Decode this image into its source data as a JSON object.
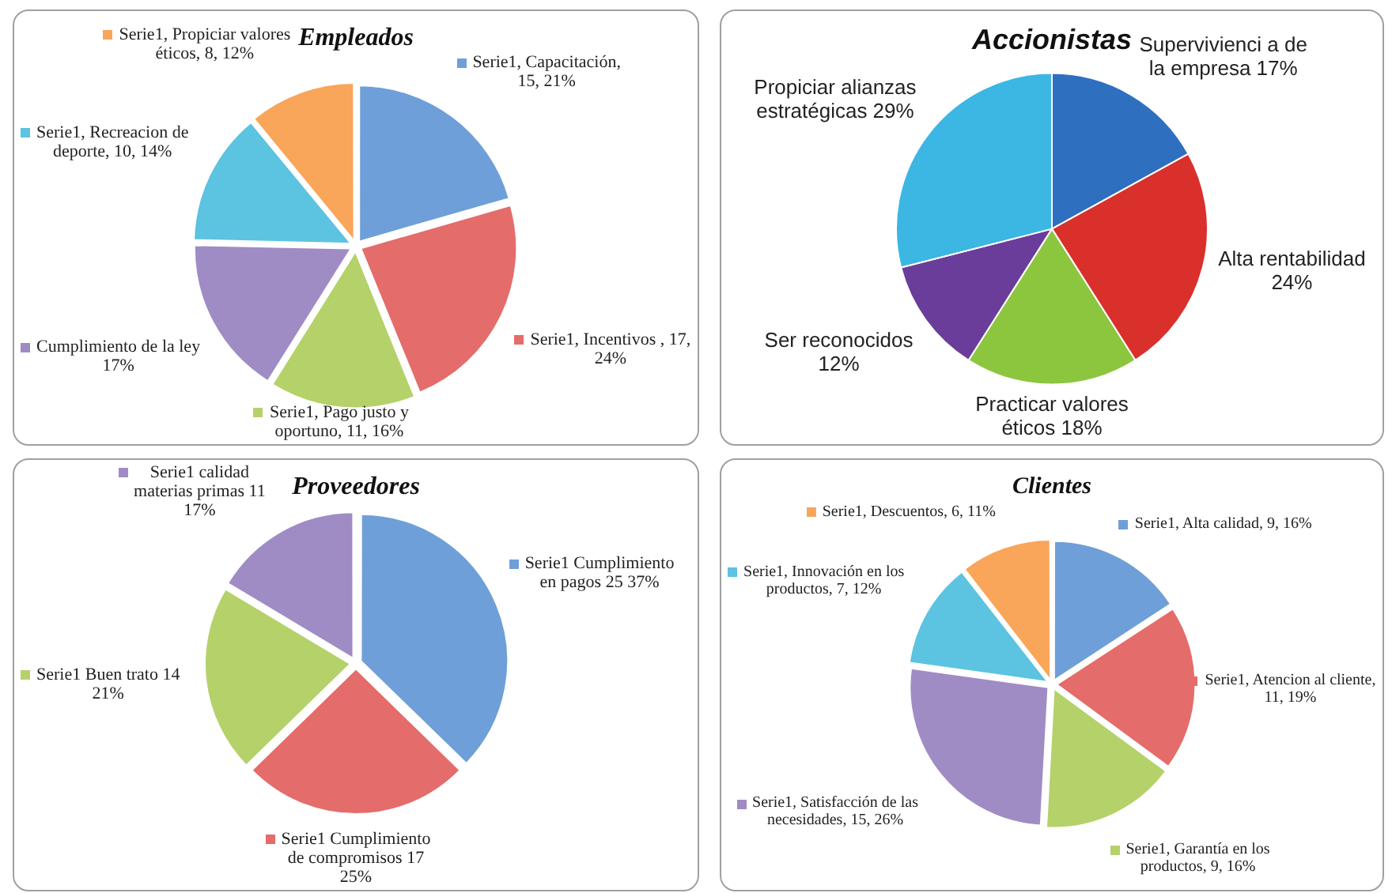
{
  "chart_data": [
    {
      "type": "pie",
      "title": "Empleados",
      "categories": [
        null,
        null,
        null,
        null,
        null,
        null
      ],
      "values": [
        15,
        17,
        11,
        12,
        10,
        8
      ],
      "colors": [
        "#6f9fd8",
        "#e46c6a",
        "#b5d16a",
        "#a08cc4",
        "#5cc3e0",
        "#f9a55a"
      ],
      "value_labels": [
        "Serie1, Capacitación, 15, 21%",
        "Serie1, Incentivos , 17, 24%",
        "Serie1, Pago justo y oportuno, 11, 16%",
        "Cumplimiento de la ley 17%",
        "Serie1, Recreacion de deporte, 10, 14%",
        "Serie1, Propiciar valores éticos, 8, 12%"
      ]
    },
    {
      "type": "pie",
      "title": "Accionistas",
      "categories": [
        null,
        null,
        null,
        null,
        null
      ],
      "values": [
        17,
        24,
        18,
        12,
        29
      ],
      "colors": [
        "#2e6fc0",
        "#d9302c",
        "#8cc63f",
        "#6a3d9a",
        "#3cb6e3"
      ],
      "value_labels": [
        "Supervivienci a de la empresa 17%",
        "Alta rentabilidad 24%",
        "Practicar valores éticos 18%",
        "Ser reconocidos 12%",
        "Propiciar alianzas estratégicas 29%"
      ]
    },
    {
      "type": "pie",
      "title": "Proveedores",
      "categories": [
        null,
        null,
        null,
        null
      ],
      "values": [
        25,
        17,
        14,
        11
      ],
      "colors": [
        "#6f9fd8",
        "#e46c6a",
        "#b5d16a",
        "#a08cc4"
      ],
      "value_labels": [
        "Serie1 Cumplimiento en pagos 25 37%",
        "Serie1 Cumplimiento de compromisos 17 25%",
        "Serie1 Buen trato 14 21%",
        "Serie1 calidad materias primas 11 17%"
      ]
    },
    {
      "type": "pie",
      "title": "Clientes",
      "categories": [
        null,
        null,
        null,
        null,
        null,
        null
      ],
      "values": [
        9,
        11,
        9,
        15,
        7,
        6
      ],
      "colors": [
        "#6f9fd8",
        "#e46c6a",
        "#b5d16a",
        "#a08cc4",
        "#5cc3e0",
        "#f9a55a"
      ],
      "value_labels": [
        "Serie1, Alta calidad, 9, 16%",
        "Serie1, Atencion al cliente, 11, 19%",
        "Serie1, Garantía en los productos, 9, 16%",
        "Serie1, Satisfacción de las necesidades, 15, 26%",
        "Serie1, Innovación en los productos, 7, 12%",
        "Serie1, Descuentos, 6, 11%"
      ]
    }
  ]
}
